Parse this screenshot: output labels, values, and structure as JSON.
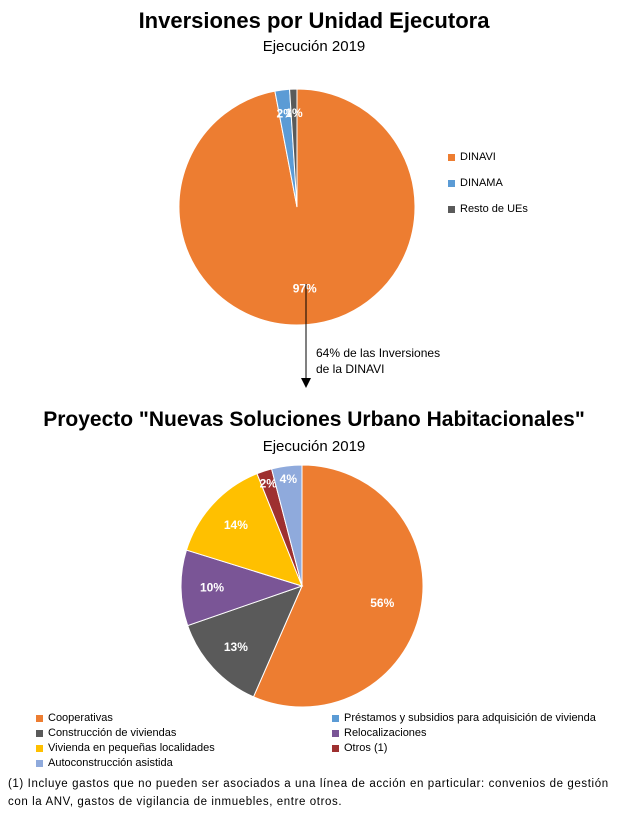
{
  "chart_data": [
    {
      "type": "pie",
      "title": "Inversiones por Unidad Ejecutora",
      "subtitle": "Ejecución 2019",
      "slices": [
        {
          "label": "DINAVI",
          "value": 97,
          "display": "97%",
          "color": "#ED7D31"
        },
        {
          "label": "DINAMA",
          "value": 2,
          "display": "2%",
          "color": "#5B9BD5"
        },
        {
          "label": "Resto de UEs",
          "value": 1,
          "display": "1%",
          "color": "#5A5A5A"
        }
      ],
      "legend_position": "right"
    },
    {
      "type": "pie",
      "title": "Proyecto \"Nuevas Soluciones Urbano Habitacionales\"",
      "subtitle": "Ejecución 2019",
      "slices": [
        {
          "label": "Cooperativas",
          "value": 56,
          "display": "56%",
          "color": "#ED7D31"
        },
        {
          "label": "Construcción de viviendas",
          "value": 13,
          "display": "13%",
          "color": "#5A5A5A"
        },
        {
          "label": "Relocalizaciones",
          "value": 10,
          "display": "10%",
          "color": "#7A5596"
        },
        {
          "label": "Vivienda en pequeñas localidades",
          "value": 14,
          "display": "14%",
          "color": "#FFC000"
        },
        {
          "label": "Otros (1)",
          "value": 2,
          "display": "2%",
          "color": "#9E3030"
        },
        {
          "label": "Autoconstrucción asistida",
          "value": 4,
          "display": "4%",
          "color": "#8FAADC"
        },
        {
          "label": "Préstamos y subsidios para adquisición de vivienda",
          "value": 0,
          "display": "",
          "color": "#5B9BD5"
        }
      ],
      "legend_position": "bottom"
    }
  ],
  "arrow_note": [
    "64% de las Inversiones",
    "de la DINAVI"
  ],
  "legend2_order": [
    [
      "Cooperativas",
      "Préstamos y subsidios para adquisición de vivienda"
    ],
    [
      "Construcción de viviendas",
      "Relocalizaciones"
    ],
    [
      "Vivienda en pequeñas localidades",
      "Otros (1)"
    ],
    [
      "Autoconstrucción asistida",
      ""
    ]
  ],
  "footnote": "(1) Incluye gastos que no pueden ser asociados a una línea de acción en particular: convenios de gestión con la ANV, gastos de vigilancia de inmuebles, entre otros."
}
